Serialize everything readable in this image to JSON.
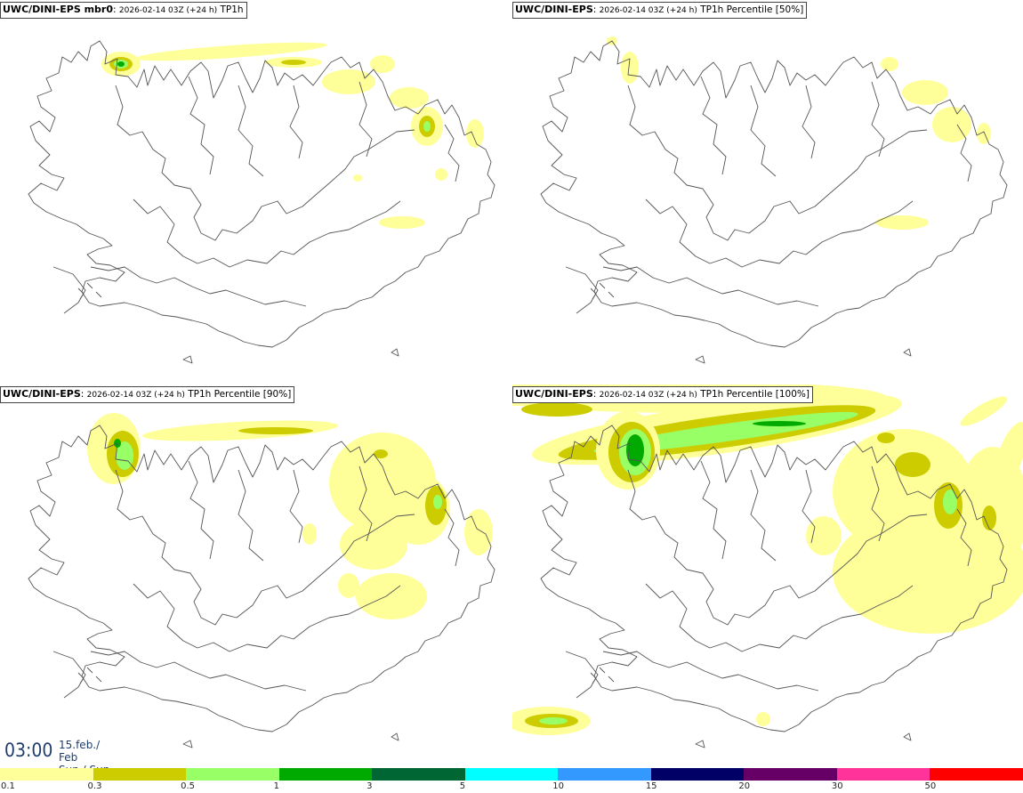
{
  "panels": [
    {
      "model": "UWC/DINI-EPS mbr0",
      "run": "2026-02-14 03Z (+24 h)",
      "field": "TP1h"
    },
    {
      "model": "UWC/DINI-EPS",
      "run": "2026-02-14 03Z (+24 h)",
      "field": "TP1h Percentile [50%]"
    },
    {
      "model": "UWC/DINI-EPS",
      "run": "2026-02-14 03Z (+24 h)",
      "field": "TP1h Percentile [90%]"
    },
    {
      "model": "UWC/DINI-EPS",
      "run": "2026-02-14 03Z (+24 h)",
      "field": "TP1h Percentile [100%]"
    }
  ],
  "valid_time": {
    "time": "03:00",
    "date": "15.feb./ Feb",
    "day": "Sun./ Sun"
  },
  "legend": {
    "levels": [
      "0.1",
      "0.3",
      "0.5",
      "1",
      "3",
      "5",
      "10",
      "15",
      "20",
      "30",
      "50"
    ],
    "colors": [
      "#ffff99",
      "#cccc00",
      "#99ff66",
      "#00aa00",
      "#006633",
      "#00ffff",
      "#3399ff",
      "#000066",
      "#660066",
      "#ff3399",
      "#ff0000"
    ]
  }
}
